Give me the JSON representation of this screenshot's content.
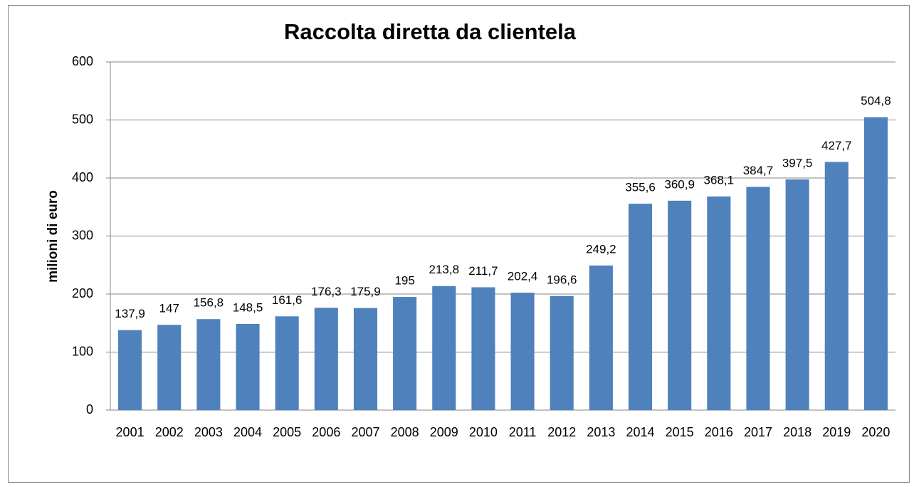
{
  "chart_data": {
    "type": "bar",
    "title": "Raccolta diretta da clientela",
    "y_label": "milioni di euro",
    "categories": [
      "2001",
      "2002",
      "2003",
      "2004",
      "2005",
      "2006",
      "2007",
      "2008",
      "2009",
      "2010",
      "2011",
      "2012",
      "2013",
      "2014",
      "2015",
      "2016",
      "2017",
      "2018",
      "2019",
      "2020"
    ],
    "values": [
      137.9,
      147,
      156.8,
      148.5,
      161.6,
      176.3,
      175.9,
      195,
      213.8,
      211.7,
      202.4,
      196.6,
      249.2,
      355.6,
      360.9,
      368.1,
      384.7,
      397.5,
      427.7,
      504.8
    ],
    "value_labels": [
      "137,9",
      "147",
      "156,8",
      "148,5",
      "161,6",
      "176,3",
      "175,9",
      "195",
      "213,8",
      "211,7",
      "202,4",
      "196,6",
      "249,2",
      "355,6",
      "360,9",
      "368,1",
      "384,7",
      "397,5",
      "427,7",
      "504,8"
    ],
    "color": "#4f81bd",
    "ylim": [
      0,
      600
    ],
    "yticks": [
      0,
      100,
      200,
      300,
      400,
      500,
      600
    ],
    "grid": true
  }
}
